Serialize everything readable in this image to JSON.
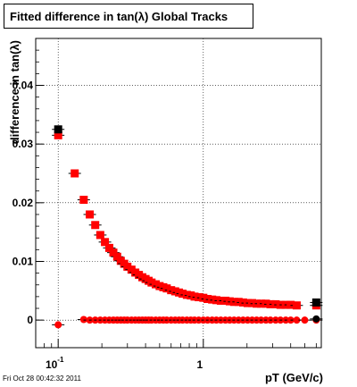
{
  "title": "Fitted difference in tan(λ)  Global Tracks",
  "footer": "Fri Oct 28 00:42:32 2011",
  "chart_data": {
    "type": "scatter",
    "xlabel": "pT (GeV/c)",
    "ylabel": "difference in tan(λ)",
    "xscale": "log",
    "xlim": [
      0.07,
      6.5
    ],
    "ylim": [
      -0.0047,
      0.048
    ],
    "x_ticks": [
      {
        "value": 0.1,
        "base": "10",
        "exp": "-1"
      },
      {
        "value": 1,
        "base": "1",
        "exp": ""
      }
    ],
    "y_ticks": [
      {
        "value": 0,
        "label": "0"
      },
      {
        "value": 0.01,
        "label": "0.01"
      },
      {
        "value": 0.02,
        "label": "0.02"
      },
      {
        "value": 0.03,
        "label": "0.03"
      },
      {
        "value": 0.04,
        "label": "0.04"
      }
    ],
    "series": [
      {
        "color": "#ff0000",
        "marker": "square",
        "x": [
          0.1,
          0.13,
          0.15,
          0.165,
          0.18,
          0.195,
          0.21,
          0.225,
          0.24,
          0.255,
          0.27,
          0.285,
          0.3,
          0.32,
          0.34,
          0.36,
          0.38,
          0.4,
          0.42,
          0.44,
          0.47,
          0.5,
          0.53,
          0.56,
          0.6,
          0.64,
          0.68,
          0.72,
          0.77,
          0.82,
          0.87,
          0.93,
          1.0,
          1.07,
          1.15,
          1.23,
          1.32,
          1.42,
          1.52,
          1.63,
          1.75,
          1.88,
          2.02,
          2.17,
          2.33,
          2.5,
          2.7,
          2.9,
          3.15,
          3.4,
          3.7,
          4.0,
          4.4,
          6.0
        ],
        "y": [
          0.0315,
          0.025,
          0.0205,
          0.018,
          0.0162,
          0.0145,
          0.0133,
          0.0123,
          0.0115,
          0.0108,
          0.0101,
          0.0096,
          0.0091,
          0.0086,
          0.0081,
          0.0077,
          0.0073,
          0.007,
          0.0067,
          0.0064,
          0.0061,
          0.0058,
          0.0056,
          0.0054,
          0.0051,
          0.0049,
          0.0047,
          0.0045,
          0.0043,
          0.0042,
          0.004,
          0.0039,
          0.0038,
          0.0036,
          0.0035,
          0.0034,
          0.0033,
          0.0033,
          0.0032,
          0.0031,
          0.0031,
          0.003,
          0.0029,
          0.0029,
          0.0028,
          0.0028,
          0.0028,
          0.0027,
          0.0027,
          0.0026,
          0.0026,
          0.0026,
          0.0025,
          0.0025
        ]
      },
      {
        "color": "#ff0000",
        "marker": "circle",
        "x": [
          0.1,
          0.15,
          0.165,
          0.18,
          0.195,
          0.21,
          0.225,
          0.24,
          0.255,
          0.27,
          0.285,
          0.3,
          0.32,
          0.34,
          0.36,
          0.38,
          0.4,
          0.42,
          0.44,
          0.47,
          0.5,
          0.53,
          0.56,
          0.6,
          0.64,
          0.68,
          0.72,
          0.77,
          0.82,
          0.87,
          0.93,
          1.0,
          1.07,
          1.15,
          1.23,
          1.32,
          1.42,
          1.52,
          1.63,
          1.75,
          1.88,
          2.02,
          2.17,
          2.33,
          2.5,
          2.7,
          2.9,
          3.15,
          3.4,
          3.7,
          4.0,
          4.4,
          5.0,
          6.0
        ],
        "y": [
          -0.0008,
          0.0001,
          0.0,
          0.0,
          0.0,
          0.0,
          0.0,
          0.0,
          0.0,
          0.0,
          0.0,
          0.0,
          0.0,
          0.0,
          0.0,
          0.0,
          0.0,
          0.0,
          0.0,
          0.0,
          0.0,
          0.0,
          0.0,
          0.0,
          0.0,
          0.0,
          0.0,
          0.0,
          0.0,
          0.0,
          0.0,
          0.0,
          0.0,
          0.0,
          0.0,
          0.0,
          0.0,
          0.0,
          0.0,
          0.0,
          0.0,
          0.0,
          0.0,
          0.0,
          0.0,
          0.0,
          0.0,
          0.0,
          0.0,
          0.0,
          0.0,
          0.0,
          0.0,
          0.0
        ]
      },
      {
        "color": "#000000",
        "marker": "square",
        "x": [
          0.1,
          6.0
        ],
        "y": [
          0.0325,
          0.003
        ]
      },
      {
        "color": "#000000",
        "marker": "circle",
        "x": [
          6.0
        ],
        "y": [
          0.0002
        ]
      }
    ]
  }
}
